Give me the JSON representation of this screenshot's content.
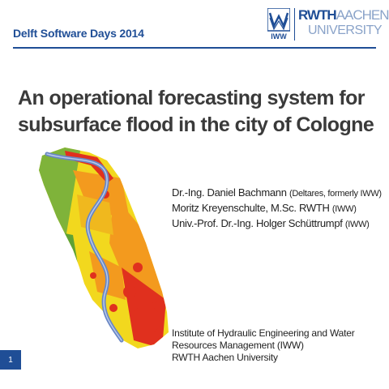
{
  "header": {
    "title": "Delft Software Days 2014",
    "logo_iww_text": "IWW",
    "logo_rwth_line1": "RWTH",
    "logo_rwth_line1b": "AACHEN",
    "logo_rwth_line2": "UNIVERSITY"
  },
  "slide": {
    "title_line1": "An operational forecasting system for",
    "title_line2": "subsurface flood in the city of Cologne",
    "authors": [
      {
        "name": "Dr.-Ing. Daniel Bachmann",
        "affiliation": "(Deltares, formerly IWW)"
      },
      {
        "name": "Moritz Kreyenschulte, M.Sc. RWTH",
        "affiliation": "(IWW)"
      },
      {
        "name": "Univ.-Prof. Dr.-Ing. Holger Schüttrumpf",
        "affiliation": "(IWW)"
      }
    ],
    "institute_lines": [
      "Institute of Hydraulic Engineering and Water",
      "Resources Management (IWW)",
      "RWTH Aachen University"
    ],
    "page_number": "1"
  },
  "colors": {
    "brand_blue": "#1f4e96",
    "map_red": "#e0301e",
    "map_orange": "#f39a1e",
    "map_yellow": "#f2d81e",
    "map_green": "#6cae3a",
    "river": "#6a87c4"
  }
}
